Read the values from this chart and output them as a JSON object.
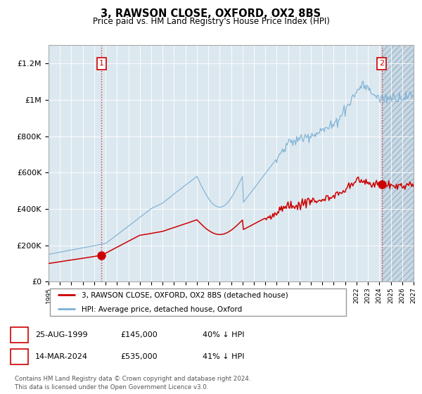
{
  "title": "3, RAWSON CLOSE, OXFORD, OX2 8BS",
  "subtitle": "Price paid vs. HM Land Registry's House Price Index (HPI)",
  "legend_label_red": "3, RAWSON CLOSE, OXFORD, OX2 8BS (detached house)",
  "legend_label_blue": "HPI: Average price, detached house, Oxford",
  "annotation1_date": "25-AUG-1999",
  "annotation1_price": "£145,000",
  "annotation1_hpi": "40% ↓ HPI",
  "annotation1_year": 1999.65,
  "annotation1_value": 145000,
  "annotation2_date": "14-MAR-2024",
  "annotation2_price": "£535,000",
  "annotation2_hpi": "41% ↓ HPI",
  "annotation2_year": 2024.2,
  "annotation2_value": 535000,
  "footer": "Contains HM Land Registry data © Crown copyright and database right 2024.\nThis data is licensed under the Open Government Licence v3.0.",
  "ylim_min": 0,
  "ylim_max": 1300000,
  "xlim_start": 1995.0,
  "xlim_end": 2027.0,
  "red_color": "#cc0000",
  "blue_color": "#7ab0d4",
  "annotation_color": "#cc0000",
  "grid_color": "#cccccc",
  "plot_bg_color": "#dce8f0",
  "hatch_color": "#c8d8e4",
  "future_cutoff": 2024.25
}
